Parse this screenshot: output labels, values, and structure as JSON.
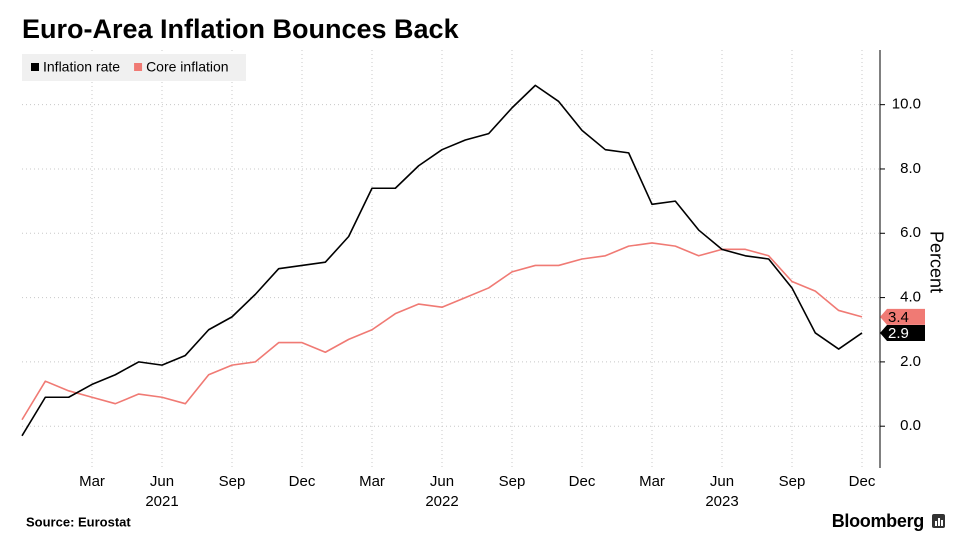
{
  "chart_data": {
    "type": "line",
    "title": "Euro-Area Inflation Bounces Back",
    "y_label": "Percent",
    "source": "Source: Eurostat",
    "brand": "Bloomberg",
    "categories": [
      null,
      null,
      null,
      "Mar",
      null,
      null,
      "Jun",
      null,
      null,
      "Sep",
      null,
      null,
      "Dec",
      null,
      null,
      "Mar",
      null,
      null,
      "Jun",
      null,
      null,
      "Sep",
      null,
      null,
      "Dec",
      null,
      null,
      "Mar",
      null,
      null,
      "Jun",
      null,
      null,
      "Sep",
      null,
      null,
      "Dec"
    ],
    "year_labels": [
      null,
      null,
      null,
      null,
      null,
      null,
      "2021",
      null,
      null,
      null,
      null,
      null,
      null,
      null,
      null,
      null,
      null,
      null,
      "2022",
      null,
      null,
      null,
      null,
      null,
      null,
      null,
      null,
      null,
      null,
      null,
      "2023",
      null,
      null,
      null,
      null,
      null,
      null
    ],
    "series": [
      {
        "name": "Inflation rate",
        "color": "#000000",
        "values": [
          -0.3,
          0.9,
          0.9,
          1.3,
          1.6,
          2.0,
          1.9,
          2.2,
          3.0,
          3.4,
          4.1,
          4.9,
          5.0,
          5.1,
          5.9,
          7.4,
          7.4,
          8.1,
          8.6,
          8.9,
          9.1,
          9.9,
          10.6,
          10.1,
          9.2,
          8.6,
          8.5,
          6.9,
          7.0,
          6.1,
          5.5,
          5.3,
          5.2,
          4.3,
          2.9,
          2.4,
          2.9
        ]
      },
      {
        "name": "Core inflation",
        "color": "#f07a74",
        "values": [
          0.2,
          1.4,
          1.1,
          0.9,
          0.7,
          1.0,
          0.9,
          0.7,
          1.6,
          1.9,
          2.0,
          2.6,
          2.6,
          2.3,
          2.7,
          3.0,
          3.5,
          3.8,
          3.7,
          4.0,
          4.3,
          4.8,
          5.0,
          5.0,
          5.2,
          5.3,
          5.6,
          5.7,
          5.6,
          5.3,
          5.5,
          5.5,
          5.3,
          4.5,
          4.2,
          3.6,
          3.4
        ]
      }
    ],
    "ylim": [
      -1.3,
      11.7
    ],
    "yticks": [
      {
        "value": 0,
        "label": "0.0"
      },
      {
        "value": 2,
        "label": "2.0"
      },
      {
        "value": 4,
        "label": "4.0"
      },
      {
        "value": 6,
        "label": "6.0"
      },
      {
        "value": 8,
        "label": "8.0"
      },
      {
        "value": 10,
        "label": "10.0"
      }
    ],
    "grid": true,
    "legend": "top-left"
  }
}
